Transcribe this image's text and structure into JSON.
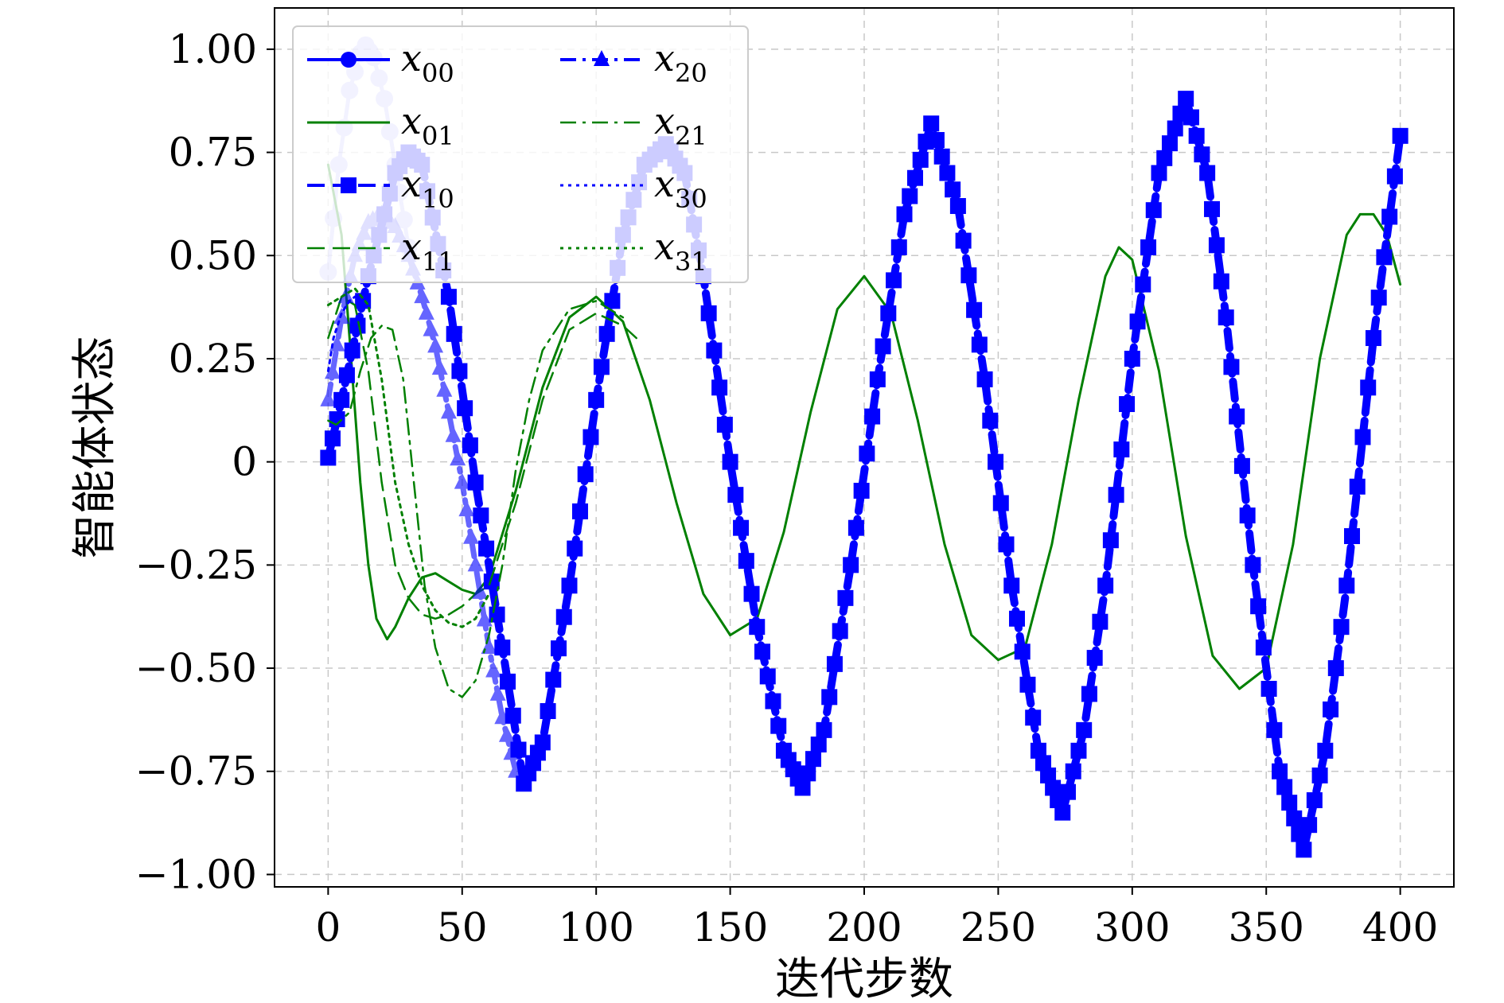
{
  "chart_data": {
    "type": "line",
    "title": "",
    "xlabel": "迭代步数",
    "ylabel": "智能体状态",
    "xlim": [
      -20,
      420
    ],
    "ylim": [
      -1.03,
      1.1
    ],
    "xticks": [
      0,
      50,
      100,
      150,
      200,
      250,
      300,
      350,
      400
    ],
    "xtick_labels": [
      "0",
      "50",
      "100",
      "150",
      "200",
      "250",
      "300",
      "350",
      "400"
    ],
    "yticks": [
      1.0,
      0.75,
      0.5,
      0.25,
      0,
      -0.25,
      -0.5,
      -0.75,
      -1.0
    ],
    "ytick_labels": [
      "1.00",
      "0.75",
      "0.50",
      "0.25",
      "0",
      "−0.25",
      "−0.50",
      "−0.75",
      "−1.00"
    ],
    "grid": true,
    "legend_position": "top-left",
    "legend_columns": 2,
    "series": [
      {
        "name": "x00",
        "base": "x",
        "sub": "00",
        "color": "#0000ff",
        "style": "solid",
        "marker": "circle",
        "width": 5,
        "opacity": 0.25,
        "x": [
          0,
          4,
          8,
          12,
          14,
          17,
          21,
          25,
          30
        ],
        "y": [
          0.46,
          0.72,
          0.9,
          0.99,
          1.01,
          0.98,
          0.88,
          0.72,
          0.52
        ]
      },
      {
        "name": "x01",
        "base": "x",
        "sub": "01",
        "color": "#008000",
        "style": "solid",
        "marker": "none",
        "width": 3,
        "opacity": 1,
        "x": [
          0,
          5,
          8,
          12,
          15,
          18,
          22,
          25,
          30,
          35,
          40,
          45,
          50,
          55,
          60,
          70,
          80,
          90,
          100,
          110,
          120,
          130,
          140,
          150,
          160,
          170,
          180,
          190,
          200,
          210,
          220,
          230,
          240,
          250,
          260,
          270,
          280,
          290,
          295,
          300,
          310,
          320,
          330,
          340,
          350,
          360,
          370,
          380,
          385,
          390,
          395,
          400
        ],
        "y": [
          0.72,
          0.55,
          0.3,
          -0.05,
          -0.25,
          -0.38,
          -0.43,
          -0.4,
          -0.33,
          -0.28,
          -0.27,
          -0.29,
          -0.31,
          -0.32,
          -0.28,
          -0.07,
          0.18,
          0.35,
          0.4,
          0.34,
          0.15,
          -0.1,
          -0.32,
          -0.42,
          -0.38,
          -0.17,
          0.12,
          0.37,
          0.45,
          0.36,
          0.1,
          -0.2,
          -0.42,
          -0.48,
          -0.45,
          -0.2,
          0.15,
          0.45,
          0.52,
          0.49,
          0.22,
          -0.18,
          -0.47,
          -0.55,
          -0.5,
          -0.2,
          0.25,
          0.55,
          0.6,
          0.6,
          0.55,
          0.43
        ]
      },
      {
        "name": "x10",
        "base": "x",
        "sub": "10",
        "color": "#0000ff",
        "style": "dashed",
        "marker": "square",
        "width": 10,
        "opacity": 1,
        "x": [
          0,
          5,
          15,
          25,
          30,
          35,
          45,
          55,
          65,
          73,
          80,
          90,
          100,
          110,
          118,
          126,
          133,
          140,
          150,
          160,
          170,
          177,
          185,
          195,
          205,
          215,
          225,
          235,
          245,
          255,
          265,
          274,
          282,
          290,
          300,
          310,
          320,
          328,
          335,
          345,
          355,
          364,
          372,
          380,
          390,
          400
        ],
        "y": [
          0.01,
          0.15,
          0.45,
          0.7,
          0.75,
          0.72,
          0.4,
          -0.05,
          -0.45,
          -0.78,
          -0.68,
          -0.3,
          0.15,
          0.55,
          0.72,
          0.77,
          0.7,
          0.45,
          0.0,
          -0.4,
          -0.7,
          -0.79,
          -0.65,
          -0.25,
          0.2,
          0.6,
          0.82,
          0.62,
          0.2,
          -0.3,
          -0.7,
          -0.85,
          -0.65,
          -0.3,
          0.25,
          0.7,
          0.88,
          0.7,
          0.35,
          -0.25,
          -0.75,
          -0.94,
          -0.7,
          -0.3,
          0.3,
          0.79
        ]
      },
      {
        "name": "x11",
        "base": "x",
        "sub": "11",
        "color": "#008000",
        "style": "dashed",
        "marker": "none",
        "width": 2.5,
        "opacity": 1,
        "x": [
          0,
          5,
          10,
          15,
          20,
          25,
          30,
          35,
          40,
          45,
          50,
          55,
          60,
          70,
          80,
          90,
          100,
          110,
          115
        ],
        "y": [
          0.3,
          0.4,
          0.38,
          0.22,
          -0.05,
          -0.25,
          -0.33,
          -0.37,
          -0.38,
          -0.37,
          -0.35,
          -0.32,
          -0.3,
          -0.1,
          0.15,
          0.32,
          0.36,
          0.33,
          0.3
        ]
      },
      {
        "name": "x20",
        "base": "x",
        "sub": "20",
        "color": "#0000ff",
        "style": "dashdot",
        "marker": "triangle",
        "width": 7,
        "opacity": 0.6,
        "x": [
          0,
          5,
          10,
          15,
          20,
          25,
          30,
          35,
          40,
          45,
          50,
          55,
          60,
          65,
          70
        ],
        "y": [
          0.15,
          0.35,
          0.5,
          0.58,
          0.6,
          0.57,
          0.5,
          0.4,
          0.28,
          0.12,
          -0.05,
          -0.25,
          -0.45,
          -0.62,
          -0.75
        ]
      },
      {
        "name": "x21",
        "base": "x",
        "sub": "21",
        "color": "#008000",
        "style": "dashdot",
        "marker": "none",
        "width": 2.5,
        "opacity": 1,
        "x": [
          0,
          3,
          8,
          12,
          16,
          20,
          24,
          28,
          32,
          36,
          40,
          45,
          50,
          55,
          60,
          65,
          70,
          75,
          80,
          90,
          100,
          110
        ],
        "y": [
          0.1,
          0.09,
          0.12,
          0.22,
          0.3,
          0.33,
          0.32,
          0.2,
          -0.05,
          -0.3,
          -0.45,
          -0.55,
          -0.57,
          -0.53,
          -0.42,
          -0.25,
          -0.02,
          0.15,
          0.27,
          0.37,
          0.39,
          0.35
        ]
      },
      {
        "name": "x30",
        "base": "x",
        "sub": "30",
        "color": "#0000ff",
        "style": "dotted",
        "marker": "none",
        "width": 3,
        "opacity": 1,
        "x": [
          0,
          2,
          5,
          8,
          10
        ],
        "y": [
          0.22,
          0.3,
          0.36,
          0.39,
          0.4
        ]
      },
      {
        "name": "x31",
        "base": "x",
        "sub": "31",
        "color": "#008000",
        "style": "dotted",
        "marker": "none",
        "width": 3,
        "opacity": 1,
        "x": [
          0,
          5,
          10,
          15,
          20,
          25,
          30,
          35,
          40,
          45,
          50,
          55,
          60
        ],
        "y": [
          0.38,
          0.4,
          0.42,
          0.38,
          0.2,
          -0.05,
          -0.2,
          -0.3,
          -0.36,
          -0.39,
          -0.4,
          -0.38,
          -0.32
        ]
      }
    ]
  }
}
